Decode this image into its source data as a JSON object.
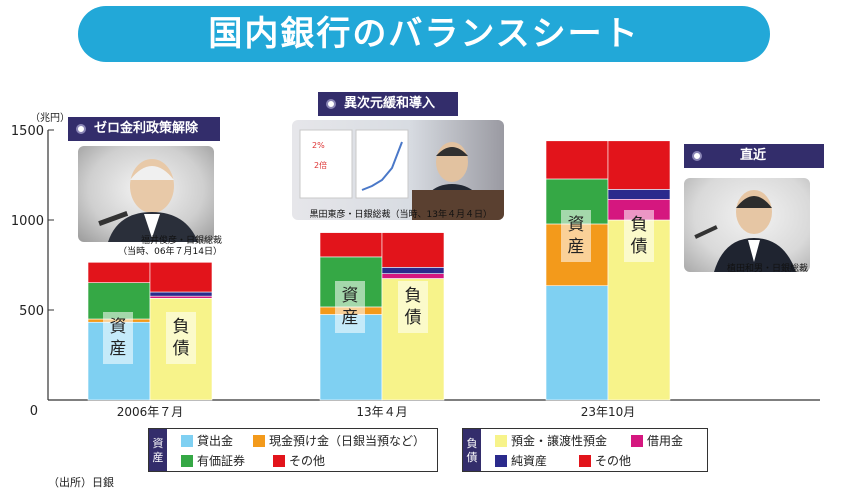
{
  "header": {
    "title": "国内銀行のバランスシート"
  },
  "events": [
    {
      "label": "ゼロ金利政策解除",
      "caption_line1": "福井俊彦・日銀総裁",
      "caption_line2": "（当時、06年７月14日）"
    },
    {
      "label": "異次元緩和導入",
      "caption_line1": "黒田東彦・日銀総裁（当時、13年４月４日）"
    },
    {
      "label": "直近",
      "caption_line1": "植田和男・日銀総裁"
    }
  ],
  "stack_labels": {
    "assets": "資産",
    "liabilities": "負債"
  },
  "legend": {
    "assets_header": "資産",
    "liabilities_header": "負債",
    "asset_items": [
      "貸出金",
      "現金預け金（日銀当預など）",
      "有価証券",
      "その他"
    ],
    "liability_items": [
      "預金・譲渡性預金",
      "借用金",
      "純資産",
      "その他"
    ]
  },
  "source": "（出所）日銀",
  "colors": {
    "title_banner": "#22a8d8",
    "event_label": "#332d6b",
    "loans": "#7fd0f2",
    "cash": "#f39a1b",
    "securities": "#35a845",
    "other": "#e2141b",
    "deposits": "#f7f38a",
    "borrowed": "#d5177f",
    "net_assets": "#2b2a8c"
  },
  "chart_data": {
    "type": "bar",
    "stacked": true,
    "y_unit": "（兆円）",
    "ylim": [
      0,
      1500
    ],
    "yticks": [
      0,
      500,
      1000,
      1500
    ],
    "categories": [
      "2006年７月",
      "13年４月",
      "23年10月"
    ],
    "assets": [
      {
        "name": "貸出金",
        "values": [
          432,
          475,
          635
        ]
      },
      {
        "name": "現金預け金（日銀当預など）",
        "values": [
          18,
          42,
          343
        ]
      },
      {
        "name": "有価証券",
        "values": [
          202,
          278,
          250
        ]
      },
      {
        "name": "その他",
        "values": [
          113,
          135,
          212
        ]
      }
    ],
    "liabilities": [
      {
        "name": "預金・譲渡性預金",
        "values": [
          565,
          675,
          1000
        ]
      },
      {
        "name": "借用金",
        "values": [
          12,
          27,
          115
        ]
      },
      {
        "name": "純資産",
        "values": [
          23,
          35,
          55
        ]
      },
      {
        "name": "その他",
        "values": [
          165,
          193,
          270
        ]
      }
    ]
  }
}
